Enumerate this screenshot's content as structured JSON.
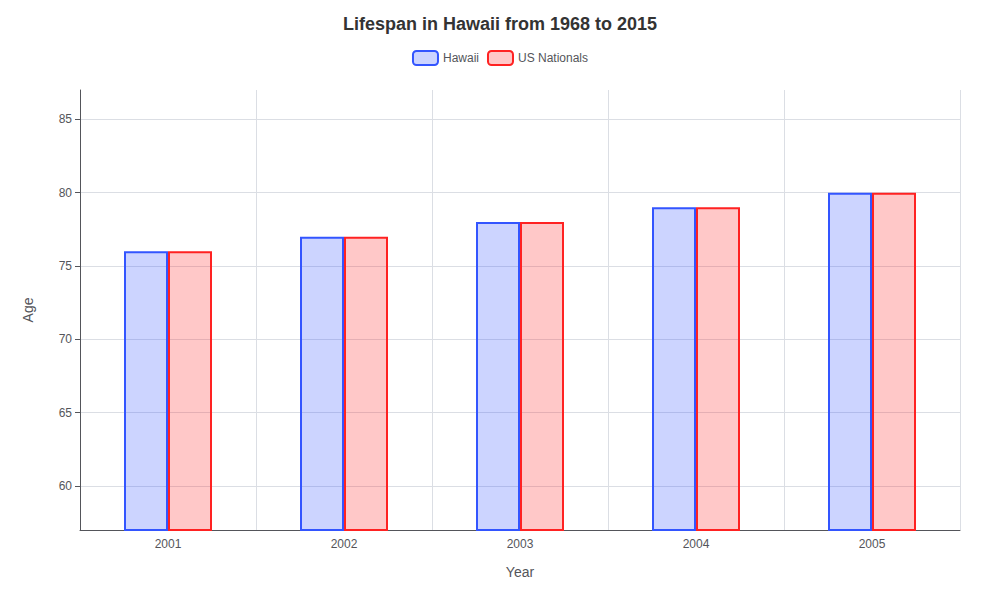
{
  "chart_data": {
    "type": "bar",
    "title": "Lifespan in Hawaii from 1968 to 2015",
    "xlabel": "Year",
    "ylabel": "Age",
    "categories": [
      "2001",
      "2002",
      "2003",
      "2004",
      "2005"
    ],
    "series": [
      {
        "name": "Hawaii",
        "color": "#3355ff",
        "values": [
          76,
          77,
          78,
          79,
          80
        ]
      },
      {
        "name": "US Nationals",
        "color": "#ff2222",
        "values": [
          76,
          77,
          78,
          79,
          80
        ]
      }
    ],
    "ylim": [
      57,
      87
    ],
    "yticks": [
      60,
      65,
      70,
      75,
      80,
      85
    ],
    "grid": true,
    "legend": "top"
  }
}
